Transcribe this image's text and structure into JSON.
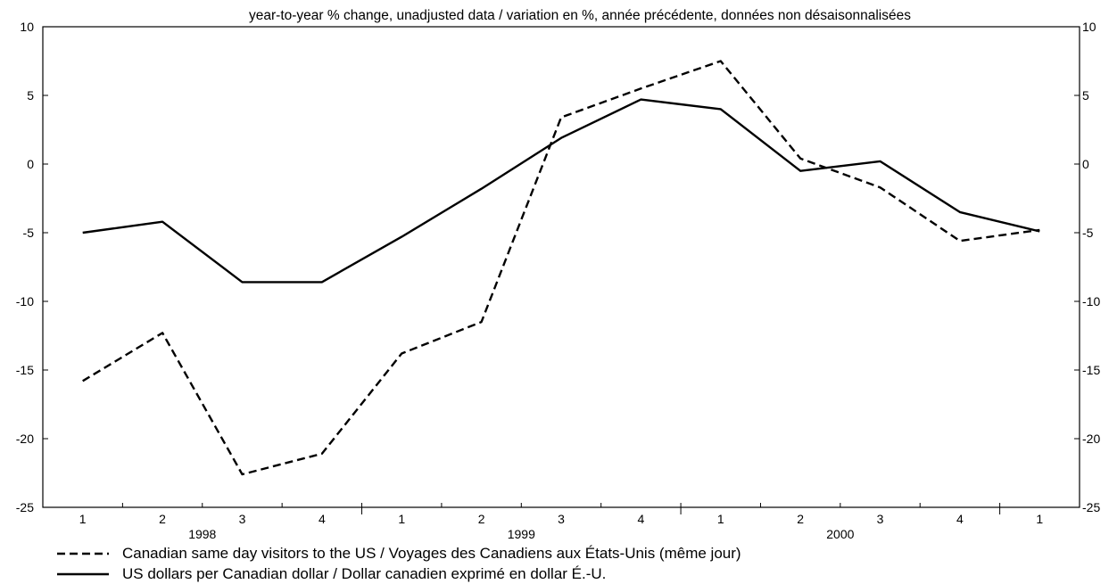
{
  "chart_data": {
    "type": "line",
    "title": "year-to-year % change, unadjusted data / variation en %, année précédente, données non désaisonnalisées",
    "categories": [
      "1",
      "2",
      "3",
      "4",
      "1",
      "2",
      "3",
      "4",
      "1",
      "2",
      "3",
      "4",
      "1"
    ],
    "year_labels": [
      {
        "label": "1998",
        "start_index": 0,
        "end_index": 3
      },
      {
        "label": "1999",
        "start_index": 4,
        "end_index": 7
      },
      {
        "label": "2000",
        "start_index": 8,
        "end_index": 11
      }
    ],
    "ylim": [
      -25,
      10
    ],
    "yticks": [
      10,
      5,
      0,
      -5,
      -10,
      -15,
      -20,
      -25
    ],
    "series": [
      {
        "name": "Canadian same day visitors to the US / Voyages des Canadiens aux États-Unis (même jour)",
        "style": "dashed",
        "color": "#000000",
        "values": [
          -15.8,
          -12.3,
          -22.6,
          -21.1,
          -13.8,
          -11.5,
          3.4,
          5.5,
          7.5,
          0.4,
          -1.7,
          -5.6,
          -4.8
        ]
      },
      {
        "name": "US dollars per Canadian dollar / Dollar canadien exprimé en dollar É.-U.",
        "style": "solid",
        "color": "#000000",
        "values": [
          -5.0,
          -4.2,
          -8.6,
          -8.6,
          -5.3,
          -1.8,
          1.9,
          4.7,
          4.0,
          -0.5,
          0.2,
          -3.5,
          -4.9
        ]
      }
    ],
    "legend_position": "bottom-left",
    "grid": false
  }
}
